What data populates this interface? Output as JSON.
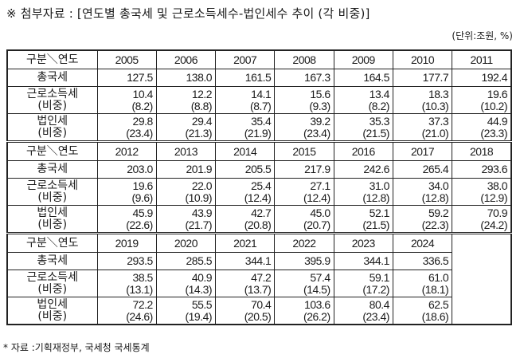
{
  "title": "※ 첨부자료 : [연도별 총국세 및 근로소득세수-법인세수 추이 (각 비중)]",
  "unit": "(단위:조원, %)",
  "table": {
    "header_label": "구분＼연도",
    "row_labels": {
      "total": "총국세",
      "income": [
        "근로소득세",
        "(비중)"
      ],
      "corporate": [
        "법인세",
        "(비중)"
      ]
    },
    "blocks": [
      {
        "years": [
          "2005",
          "2006",
          "2007",
          "2008",
          "2009",
          "2010",
          "2011"
        ],
        "total": [
          "127.5",
          "138.0",
          "161.5",
          "167.3",
          "164.5",
          "177.7",
          "192.4"
        ],
        "income": [
          "10.4",
          "12.2",
          "14.1",
          "15.6",
          "13.4",
          "18.3",
          "19.6"
        ],
        "income_share": [
          "(8.2)",
          "(8.8)",
          "(8.7)",
          "(9.3)",
          "(8.2)",
          "(10.3)",
          "(10.2)"
        ],
        "corporate": [
          "29.8",
          "29.4",
          "35.4",
          "39.2",
          "35.3",
          "37.3",
          "44.9"
        ],
        "corporate_share": [
          "(23.4)",
          "(21.3)",
          "(21.9)",
          "(23.4)",
          "(21.5)",
          "(21.0)",
          "(23.3)"
        ]
      },
      {
        "years": [
          "2012",
          "2013",
          "2014",
          "2015",
          "2016",
          "2017",
          "2018"
        ],
        "total": [
          "203.0",
          "201.9",
          "205.5",
          "217.9",
          "242.6",
          "265.4",
          "293.6"
        ],
        "income": [
          "19.6",
          "22.0",
          "25.4",
          "27.1",
          "31.0",
          "34.0",
          "38.0"
        ],
        "income_share": [
          "(9.6)",
          "(10.9)",
          "(12.4)",
          "(12.4)",
          "(12.8)",
          "(12.8)",
          "(12.9)"
        ],
        "corporate": [
          "45.9",
          "43.9",
          "42.7",
          "45.0",
          "52.1",
          "59.2",
          "70.9"
        ],
        "corporate_share": [
          "(22.6)",
          "(21.7)",
          "(20.8)",
          "(20.7)",
          "(21.5)",
          "(22.3)",
          "(24.2)"
        ]
      },
      {
        "years": [
          "2019",
          "2020",
          "2021",
          "2022",
          "2023",
          "2024",
          ""
        ],
        "total": [
          "293.5",
          "285.5",
          "344.1",
          "395.9",
          "344.1",
          "336.5",
          ""
        ],
        "income": [
          "38.5",
          "40.9",
          "47.2",
          "57.4",
          "59.1",
          "61.0",
          ""
        ],
        "income_share": [
          "(13.1)",
          "(14.3)",
          "(13.7)",
          "(14.5)",
          "(17.2)",
          "(18.1)",
          ""
        ],
        "corporate": [
          "72.2",
          "55.5",
          "70.4",
          "103.6",
          "80.4",
          "62.5",
          ""
        ],
        "corporate_share": [
          "(24.6)",
          "(19.4)",
          "(20.5)",
          "(26.2)",
          "(23.4)",
          "(18.6)",
          ""
        ]
      }
    ]
  },
  "footer": "* 자료 :기획재정부, 국세청 국세통계"
}
